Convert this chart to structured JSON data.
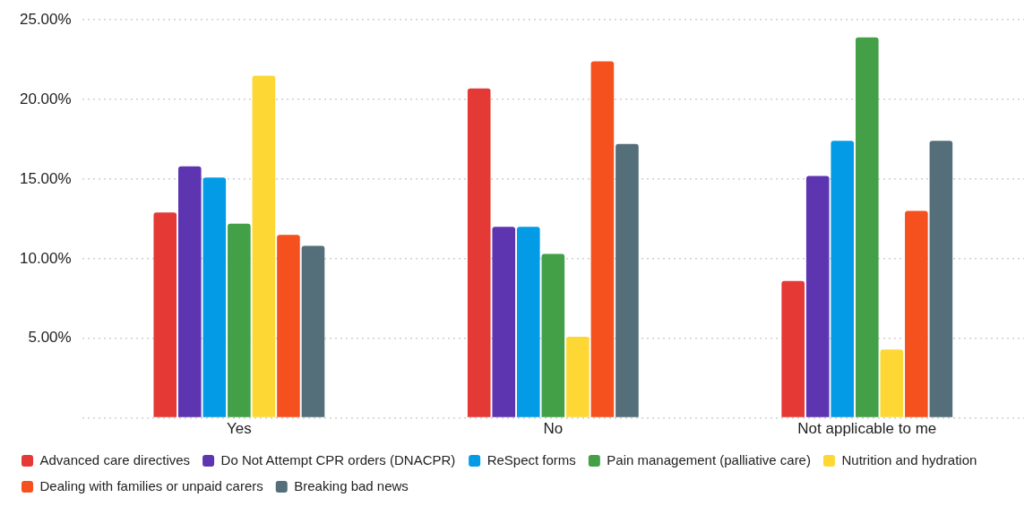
{
  "chart_data": {
    "type": "bar",
    "categories": [
      "Yes",
      "No",
      "Not applicable to me"
    ],
    "series": [
      {
        "name": "Advanced care directives",
        "color": "#e53935",
        "values": [
          12.9,
          20.7,
          8.6
        ]
      },
      {
        "name": "Do Not Attempt CPR orders (DNACPR)",
        "color": "#5e35b1",
        "values": [
          15.8,
          12.0,
          15.2
        ]
      },
      {
        "name": "ReSpect forms",
        "color": "#039be5",
        "values": [
          15.1,
          12.0,
          17.4
        ]
      },
      {
        "name": "Pain management (palliative care)",
        "color": "#43a047",
        "values": [
          12.2,
          10.3,
          23.9
        ]
      },
      {
        "name": "Nutrition and hydration",
        "color": "#fdd835",
        "values": [
          21.5,
          5.1,
          4.3
        ]
      },
      {
        "name": "Dealing with families or unpaid carers",
        "color": "#f4511e",
        "values": [
          11.5,
          22.4,
          13.0
        ]
      },
      {
        "name": "Breaking bad news",
        "color": "#546e7a",
        "values": [
          10.8,
          17.2,
          17.4
        ]
      }
    ],
    "ylim": [
      0,
      25
    ],
    "yticks": [
      {
        "value": 0,
        "label": null
      },
      {
        "value": 5,
        "label": "5.00%"
      },
      {
        "value": 10,
        "label": "10.00%"
      },
      {
        "value": 15,
        "label": "15.00%"
      },
      {
        "value": 20,
        "label": "20.00%"
      },
      {
        "value": 25,
        "label": "25.00%"
      }
    ],
    "grid": "y",
    "legend": "bottom left"
  }
}
